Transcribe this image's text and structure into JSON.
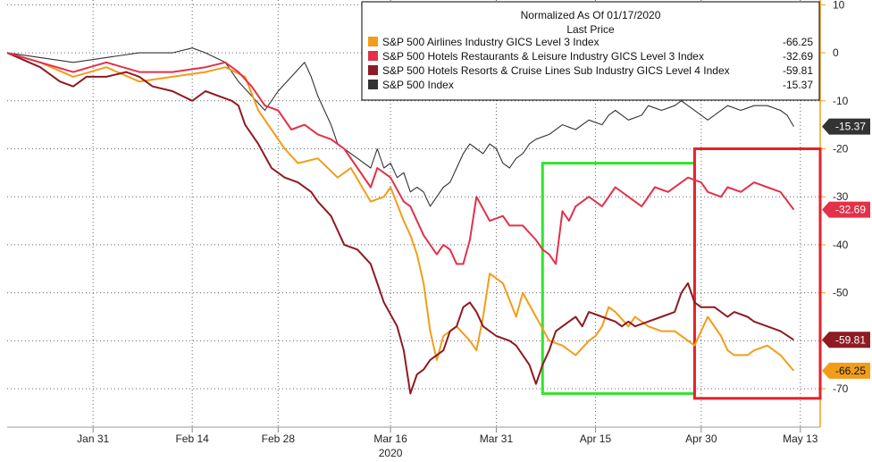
{
  "chart_data": {
    "type": "line",
    "legend": {
      "title": "Normalized As Of 01/17/2020",
      "subtitle": "Last Price",
      "placement": "top-right"
    },
    "x_ticks": [
      "Jan 31",
      "Feb 14",
      "Feb 28",
      "Mar 16",
      "Mar 31",
      "Apr 15",
      "Apr 30",
      "May 13"
    ],
    "x_year": "2020",
    "y_ticks": [
      "10",
      "0",
      "-10",
      "-20",
      "-30",
      "-40",
      "-50",
      "-60",
      "-70"
    ],
    "ylim": [
      -78,
      11
    ],
    "y_axis_position": "right",
    "grid": true,
    "series": [
      {
        "name": "S&P 500 Airlines Industry GICS Level 3 Index",
        "last": "-66.25",
        "color": "#f29d1a",
        "points": [
          [
            0,
            0
          ],
          [
            5,
            -2
          ],
          [
            10,
            -5
          ],
          [
            15,
            -3
          ],
          [
            20,
            -6
          ],
          [
            25,
            -5
          ],
          [
            30,
            -4
          ],
          [
            33,
            -3
          ],
          [
            36,
            -5
          ],
          [
            38,
            -12
          ],
          [
            40,
            -16
          ],
          [
            42,
            -20
          ],
          [
            44,
            -23
          ],
          [
            47,
            -22
          ],
          [
            50,
            -26
          ],
          [
            52,
            -24
          ],
          [
            55,
            -31
          ],
          [
            57,
            -30
          ],
          [
            58,
            -28
          ],
          [
            60,
            -35
          ],
          [
            61,
            -38
          ],
          [
            62,
            -42
          ],
          [
            63,
            -48
          ],
          [
            64,
            -58
          ],
          [
            65,
            -64
          ],
          [
            66,
            -59
          ],
          [
            68,
            -57
          ],
          [
            70,
            -60
          ],
          [
            71,
            -62
          ],
          [
            72,
            -55
          ],
          [
            73,
            -46
          ],
          [
            75,
            -48
          ],
          [
            77,
            -55
          ],
          [
            78,
            -50
          ],
          [
            80,
            -55
          ],
          [
            82,
            -60
          ],
          [
            84,
            -61
          ],
          [
            86,
            -63
          ],
          [
            88,
            -60
          ],
          [
            89,
            -59
          ],
          [
            90,
            -57
          ],
          [
            91,
            -53
          ],
          [
            92,
            -54
          ],
          [
            94,
            -57
          ],
          [
            95,
            -55
          ],
          [
            97,
            -57
          ],
          [
            99,
            -58
          ],
          [
            101,
            -58
          ],
          [
            103,
            -60
          ],
          [
            104,
            -61
          ],
          [
            105,
            -58
          ],
          [
            106,
            -55
          ],
          [
            108,
            -59
          ],
          [
            109,
            -62
          ],
          [
            110,
            -63
          ],
          [
            112,
            -63
          ],
          [
            113,
            -62
          ],
          [
            115,
            -61
          ],
          [
            117,
            -63
          ],
          [
            119,
            -66.25
          ]
        ]
      },
      {
        "name": "S&P 500 Hotels Restaurants & Leisure Industry GICS Level 3 Index",
        "last": "-32.69",
        "color": "#e23149",
        "points": [
          [
            0,
            0
          ],
          [
            5,
            -2
          ],
          [
            10,
            -4
          ],
          [
            15,
            -2
          ],
          [
            20,
            -4
          ],
          [
            25,
            -4
          ],
          [
            30,
            -3
          ],
          [
            33,
            -2
          ],
          [
            35,
            -4
          ],
          [
            37,
            -7
          ],
          [
            39,
            -11
          ],
          [
            41,
            -12
          ],
          [
            43,
            -16
          ],
          [
            45,
            -15
          ],
          [
            47,
            -17
          ],
          [
            49,
            -18
          ],
          [
            51,
            -20
          ],
          [
            53,
            -24
          ],
          [
            55,
            -28
          ],
          [
            56,
            -24
          ],
          [
            58,
            -26
          ],
          [
            60,
            -31
          ],
          [
            61,
            -32
          ],
          [
            63,
            -38
          ],
          [
            65,
            -42
          ],
          [
            66,
            -40
          ],
          [
            67,
            -41
          ],
          [
            68,
            -44
          ],
          [
            69,
            -44
          ],
          [
            70,
            -39
          ],
          [
            71,
            -30
          ],
          [
            73,
            -35
          ],
          [
            75,
            -34
          ],
          [
            76,
            -36
          ],
          [
            78,
            -36
          ],
          [
            80,
            -39
          ],
          [
            81,
            -41
          ],
          [
            82,
            -42
          ],
          [
            83,
            -44
          ],
          [
            84,
            -33
          ],
          [
            85,
            -35
          ],
          [
            86,
            -32
          ],
          [
            88,
            -30
          ],
          [
            90,
            -32
          ],
          [
            92,
            -28
          ],
          [
            94,
            -30
          ],
          [
            96,
            -32
          ],
          [
            98,
            -28
          ],
          [
            100,
            -29
          ],
          [
            102,
            -27
          ],
          [
            103,
            -26
          ],
          [
            105,
            -27
          ],
          [
            106,
            -29
          ],
          [
            108,
            -30
          ],
          [
            109,
            -28
          ],
          [
            111,
            -29
          ],
          [
            113,
            -27
          ],
          [
            115,
            -28
          ],
          [
            117,
            -29
          ],
          [
            119,
            -32.69
          ]
        ]
      },
      {
        "name": "S&P 500 Hotels Resorts & Cruise Lines Sub Industry GICS Level 4 Index",
        "last": "-59.81",
        "color": "#8e1a22",
        "points": [
          [
            0,
            0
          ],
          [
            5,
            -3
          ],
          [
            8,
            -6
          ],
          [
            10,
            -7
          ],
          [
            12,
            -5
          ],
          [
            15,
            -5
          ],
          [
            18,
            -4
          ],
          [
            20,
            -5
          ],
          [
            22,
            -7
          ],
          [
            25,
            -8
          ],
          [
            28,
            -10
          ],
          [
            30,
            -8
          ],
          [
            32,
            -9
          ],
          [
            34,
            -10
          ],
          [
            35,
            -11
          ],
          [
            36,
            -15
          ],
          [
            38,
            -19
          ],
          [
            40,
            -24
          ],
          [
            42,
            -26
          ],
          [
            44,
            -27
          ],
          [
            46,
            -29
          ],
          [
            47,
            -31
          ],
          [
            49,
            -34
          ],
          [
            51,
            -40
          ],
          [
            53,
            -41
          ],
          [
            55,
            -44
          ],
          [
            56,
            -48
          ],
          [
            57,
            -52
          ],
          [
            59,
            -57
          ],
          [
            60,
            -62
          ],
          [
            61,
            -71
          ],
          [
            62,
            -67
          ],
          [
            63,
            -66
          ],
          [
            64,
            -64
          ],
          [
            66,
            -62
          ],
          [
            67,
            -58
          ],
          [
            68,
            -57
          ],
          [
            69,
            -53
          ],
          [
            70,
            -52
          ],
          [
            71,
            -54
          ],
          [
            72,
            -57
          ],
          [
            74,
            -59
          ],
          [
            76,
            -60
          ],
          [
            77,
            -61
          ],
          [
            78,
            -63
          ],
          [
            79,
            -65
          ],
          [
            80,
            -69
          ],
          [
            81,
            -65
          ],
          [
            82,
            -62
          ],
          [
            83,
            -58
          ],
          [
            84,
            -57
          ],
          [
            85,
            -56
          ],
          [
            86,
            -55
          ],
          [
            87,
            -57
          ],
          [
            88,
            -54
          ],
          [
            90,
            -55
          ],
          [
            92,
            -56
          ],
          [
            93,
            -57
          ],
          [
            94,
            -56
          ],
          [
            95,
            -57
          ],
          [
            97,
            -56
          ],
          [
            99,
            -55
          ],
          [
            101,
            -54
          ],
          [
            102,
            -50
          ],
          [
            103,
            -48
          ],
          [
            104,
            -52
          ],
          [
            105,
            -53
          ],
          [
            107,
            -53
          ],
          [
            109,
            -55
          ],
          [
            110,
            -54
          ],
          [
            112,
            -55
          ],
          [
            113,
            -56
          ],
          [
            115,
            -57
          ],
          [
            117,
            -58
          ],
          [
            119,
            -59.81
          ]
        ]
      },
      {
        "name": "S&P 500 Index",
        "last": "-15.37",
        "color": "#333333",
        "points": [
          [
            0,
            0
          ],
          [
            5,
            -1
          ],
          [
            10,
            -2
          ],
          [
            15,
            -1
          ],
          [
            20,
            0
          ],
          [
            25,
            0
          ],
          [
            28,
            1
          ],
          [
            30,
            0
          ],
          [
            33,
            -2
          ],
          [
            35,
            -6
          ],
          [
            37,
            -9
          ],
          [
            39,
            -12
          ],
          [
            41,
            -8
          ],
          [
            43,
            -5
          ],
          [
            45,
            -2
          ],
          [
            46,
            -5
          ],
          [
            47,
            -9
          ],
          [
            48,
            -12
          ],
          [
            49,
            -15
          ],
          [
            50,
            -19
          ],
          [
            51,
            -20
          ],
          [
            53,
            -22
          ],
          [
            55,
            -24
          ],
          [
            56,
            -20
          ],
          [
            57,
            -24
          ],
          [
            58,
            -23
          ],
          [
            59,
            -26
          ],
          [
            60,
            -25
          ],
          [
            61,
            -29
          ],
          [
            62,
            -28
          ],
          [
            63,
            -29
          ],
          [
            64,
            -32
          ],
          [
            65,
            -30
          ],
          [
            66,
            -28
          ],
          [
            67,
            -27
          ],
          [
            68,
            -24
          ],
          [
            69,
            -21
          ],
          [
            70,
            -19
          ],
          [
            71,
            -20
          ],
          [
            72,
            -21
          ],
          [
            73,
            -19
          ],
          [
            74,
            -20
          ],
          [
            75,
            -23
          ],
          [
            76,
            -24
          ],
          [
            77,
            -22
          ],
          [
            78,
            -21
          ],
          [
            79,
            -19
          ],
          [
            80,
            -18
          ],
          [
            82,
            -17
          ],
          [
            84,
            -15
          ],
          [
            86,
            -16
          ],
          [
            88,
            -14
          ],
          [
            90,
            -15
          ],
          [
            91,
            -13
          ],
          [
            92,
            -12
          ],
          [
            94,
            -14
          ],
          [
            96,
            -13
          ],
          [
            97,
            -11
          ],
          [
            99,
            -12
          ],
          [
            101,
            -11
          ],
          [
            102,
            -10
          ],
          [
            103,
            -11
          ],
          [
            105,
            -13
          ],
          [
            106,
            -14
          ],
          [
            107,
            -13
          ],
          [
            109,
            -11
          ],
          [
            111,
            -12
          ],
          [
            113,
            -11
          ],
          [
            115,
            -11
          ],
          [
            117,
            -12
          ],
          [
            118,
            -13
          ],
          [
            119,
            -15.37
          ]
        ]
      }
    ],
    "x_domain": [
      0,
      119
    ],
    "x_tick_positions": [
      13,
      28,
      41,
      58,
      74,
      89,
      105,
      120
    ],
    "highlights": [
      {
        "name": "green-box",
        "color": "#2ee52e",
        "x": [
          81,
          104
        ],
        "y": [
          -71,
          -23
        ]
      },
      {
        "name": "red-box",
        "color": "#e5222a",
        "x": [
          104,
          123
        ],
        "y": [
          -72,
          -20
        ]
      }
    ]
  }
}
